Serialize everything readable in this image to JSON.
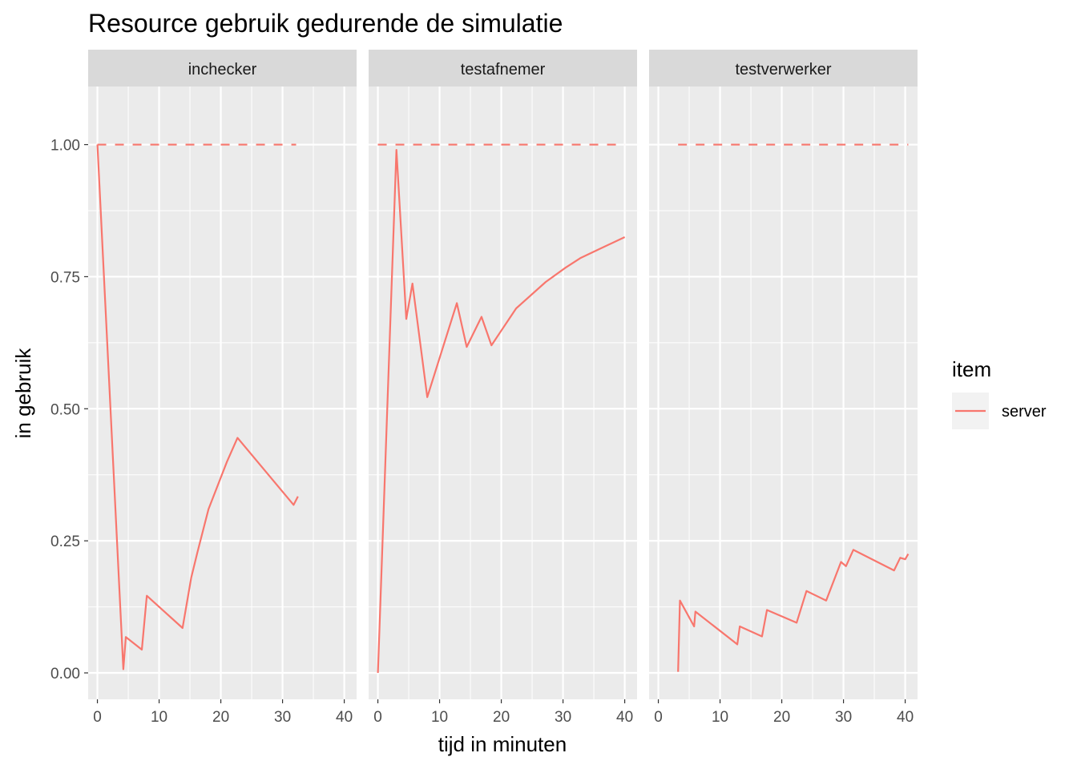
{
  "chart_data": {
    "type": "line",
    "title": "Resource gebruik gedurende de simulatie",
    "xlabel": "tijd in minuten",
    "ylabel": "in gebruik",
    "xlim": [
      -1.5,
      42
    ],
    "ylim": [
      -0.05,
      1.11
    ],
    "x_ticks": [
      0,
      10,
      20,
      30,
      40
    ],
    "x_tick_labels": [
      "0",
      "10",
      "20",
      "30",
      "40"
    ],
    "y_ticks": [
      0,
      0.25,
      0.5,
      0.75,
      1
    ],
    "y_tick_labels": [
      "0.00",
      "0.25",
      "0.50",
      "0.75",
      "1.00"
    ],
    "grid": true,
    "legend": {
      "title": "item",
      "position": "right",
      "entries": [
        {
          "name": "server",
          "color": "#F8766D"
        }
      ]
    },
    "line_color": "#F8766D",
    "panels": [
      {
        "name": "inchecker",
        "capacity": {
          "value": 1,
          "x": [
            0,
            32.2
          ],
          "style": "dashed"
        },
        "series": [
          {
            "name": "server",
            "x": [
              0,
              4.2,
              4.6,
              7.2,
              8.0,
              13.8,
              15.2,
              16.2,
              18.0,
              20.0,
              21.0,
              22.7,
              31.8,
              32.5
            ],
            "y": [
              1.0,
              0.007,
              0.068,
              0.044,
              0.146,
              0.085,
              0.18,
              0.228,
              0.31,
              0.37,
              0.4,
              0.445,
              0.318,
              0.334
            ]
          }
        ]
      },
      {
        "name": "testafnemer",
        "capacity": {
          "value": 1,
          "x": [
            0,
            40
          ],
          "style": "dashed"
        },
        "series": [
          {
            "name": "server",
            "x": [
              0,
              3.0,
              4.6,
              5.6,
              8.0,
              12.8,
              14.4,
              16.8,
              18.4,
              20.0,
              22.4,
              27.2,
              30.4,
              32.8,
              36.0,
              40.0
            ],
            "y": [
              0.0,
              0.99,
              0.67,
              0.737,
              0.522,
              0.7,
              0.617,
              0.674,
              0.62,
              0.648,
              0.69,
              0.74,
              0.767,
              0.785,
              0.803,
              0.825
            ]
          }
        ]
      },
      {
        "name": "testverwerker",
        "capacity": {
          "value": 1,
          "x": [
            3.2,
            40.5
          ],
          "style": "dashed"
        },
        "series": [
          {
            "name": "server",
            "x": [
              3.2,
              3.5,
              5.8,
              6.0,
              12.8,
              13.2,
              16.8,
              17.6,
              22.4,
              24.0,
              27.2,
              29.6,
              30.4,
              31.6,
              38.2,
              39.2,
              40.0,
              40.5
            ],
            "y": [
              0.002,
              0.137,
              0.088,
              0.116,
              0.054,
              0.088,
              0.069,
              0.119,
              0.095,
              0.155,
              0.137,
              0.21,
              0.202,
              0.233,
              0.194,
              0.218,
              0.215,
              0.225
            ]
          }
        ]
      }
    ]
  }
}
